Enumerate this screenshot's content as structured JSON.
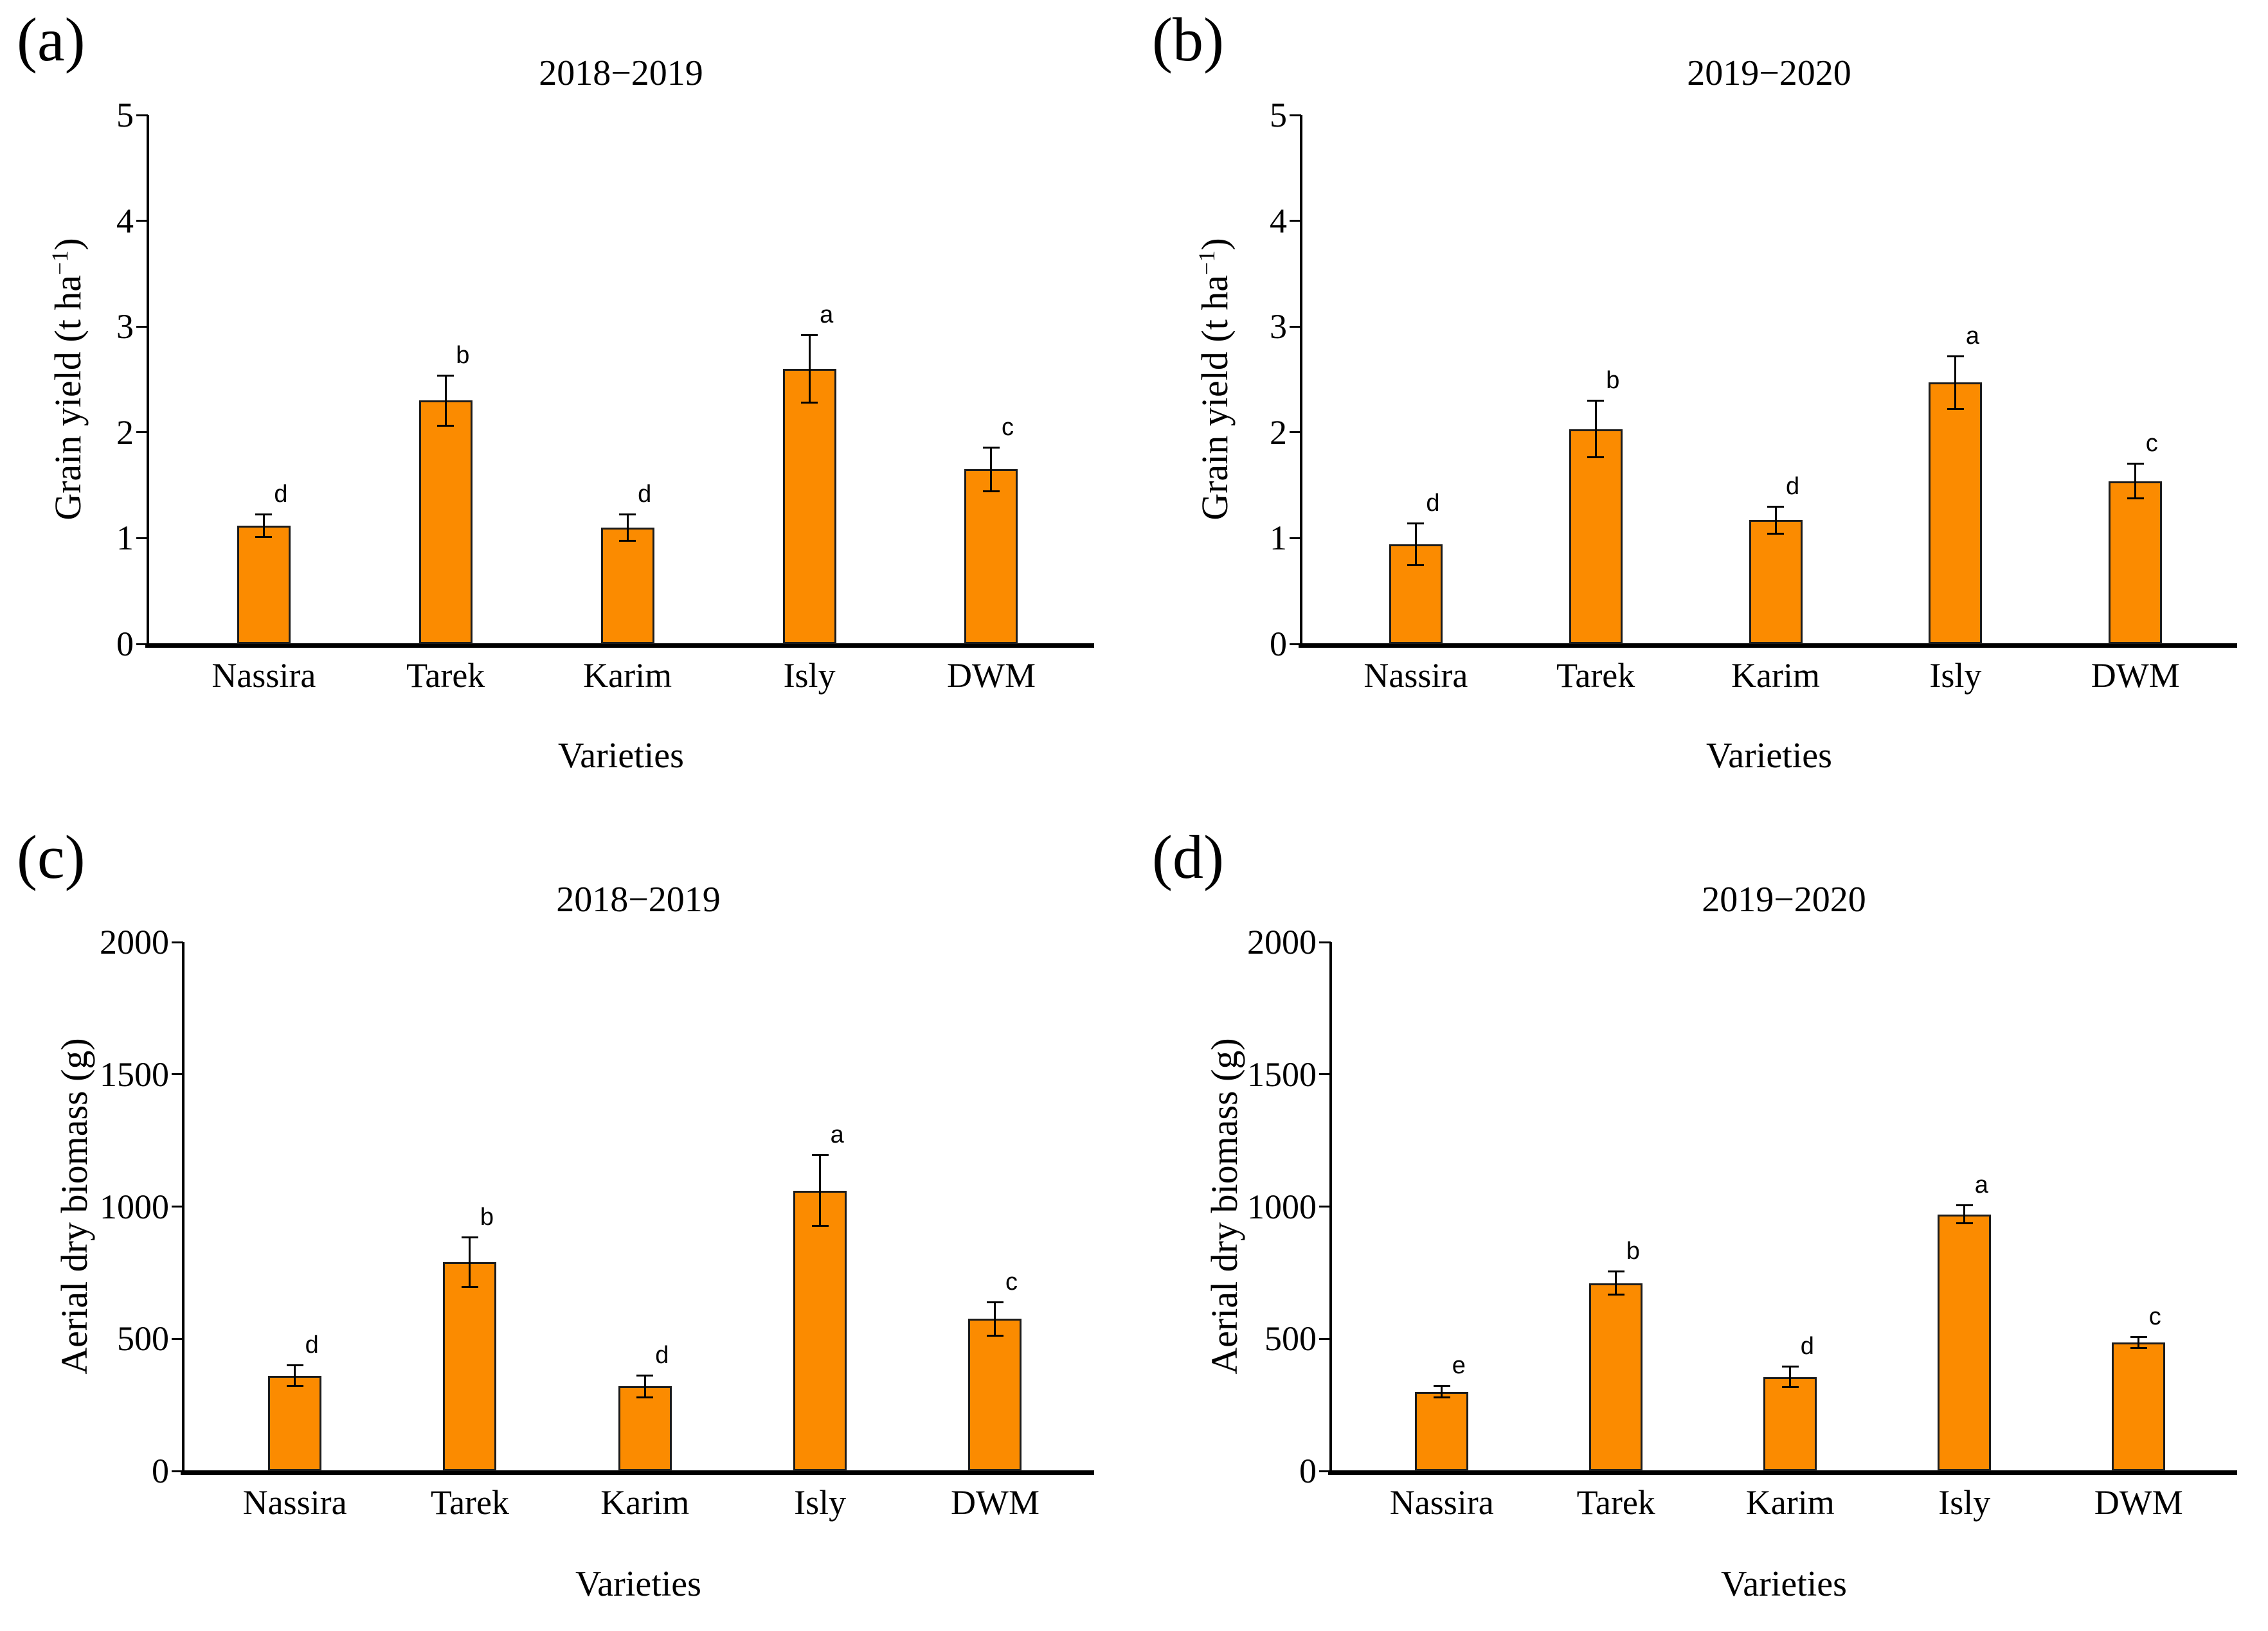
{
  "figure_background": "#ffffff",
  "chart_data": [
    {
      "type": "bar",
      "panel_label": "(a)",
      "title": "2018−2019",
      "xlabel": "Varieties",
      "ylabel": "Grain yield (t ha−1)",
      "ylabel_prefix": "Grain yield (t ha",
      "ylabel_sup": "−1",
      "ylabel_suffix": ")",
      "categories": [
        "Nassira",
        "Tarek",
        "Karim",
        "Isly",
        "DWM"
      ],
      "values": [
        1.12,
        2.3,
        1.1,
        2.6,
        1.65
      ],
      "errors": [
        0.11,
        0.24,
        0.13,
        0.32,
        0.21
      ],
      "sig_letters": [
        "d",
        "b",
        "d",
        "a",
        "c"
      ],
      "ylim": [
        0,
        5
      ],
      "yticks": [
        0,
        1,
        2,
        3,
        4,
        5
      ],
      "grid": false,
      "legend": "none",
      "bar_color": "#FB8B00",
      "bar_border": "#1c1c1c"
    },
    {
      "type": "bar",
      "panel_label": "(b)",
      "title": "2019−2020",
      "xlabel": "Varieties",
      "ylabel": "Grain yield (t ha−1)",
      "ylabel_prefix": "Grain yield (t ha",
      "ylabel_sup": "−1",
      "ylabel_suffix": ")",
      "categories": [
        "Nassira",
        "Tarek",
        "Karim",
        "Isly",
        "DWM"
      ],
      "values": [
        0.94,
        2.03,
        1.17,
        2.47,
        1.54
      ],
      "errors": [
        0.2,
        0.27,
        0.13,
        0.25,
        0.17
      ],
      "sig_letters": [
        "d",
        "b",
        "d",
        "a",
        "c"
      ],
      "ylim": [
        0,
        5
      ],
      "yticks": [
        0,
        1,
        2,
        3,
        4,
        5
      ],
      "grid": false,
      "legend": "none",
      "bar_color": "#FB8B00",
      "bar_border": "#1c1c1c"
    },
    {
      "type": "bar",
      "panel_label": "(c)",
      "title": "2018−2019",
      "xlabel": "Varieties",
      "ylabel": "Aerial dry biomass (g)",
      "ylabel_prefix": "Aerial dry biomass (g)",
      "ylabel_sup": "",
      "ylabel_suffix": "",
      "categories": [
        "Nassira",
        "Tarek",
        "Karim",
        "Isly",
        "DWM"
      ],
      "values": [
        360,
        790,
        320,
        1060,
        575
      ],
      "errors": [
        40,
        95,
        43,
        135,
        65
      ],
      "sig_letters": [
        "d",
        "b",
        "d",
        "a",
        "c"
      ],
      "ylim": [
        0,
        2000
      ],
      "yticks": [
        0,
        500,
        1000,
        1500,
        2000
      ],
      "grid": false,
      "legend": "none",
      "bar_color": "#FB8B00",
      "bar_border": "#1c1c1c"
    },
    {
      "type": "bar",
      "panel_label": "(d)",
      "title": "2019−2020",
      "xlabel": "Varieties",
      "ylabel": "Aerial dry biomass (g)",
      "ylabel_prefix": "Aerial dry biomass (g)",
      "ylabel_sup": "",
      "ylabel_suffix": "",
      "categories": [
        "Nassira",
        "Tarek",
        "Karim",
        "Isly",
        "DWM"
      ],
      "values": [
        300,
        710,
        355,
        970,
        485
      ],
      "errors": [
        22,
        45,
        40,
        35,
        22
      ],
      "sig_letters": [
        "e",
        "b",
        "d",
        "a",
        "c"
      ],
      "ylim": [
        0,
        2000
      ],
      "yticks": [
        0,
        500,
        1000,
        1500,
        2000
      ],
      "grid": false,
      "legend": "none",
      "bar_color": "#FB8B00",
      "bar_border": "#1c1c1c"
    }
  ]
}
